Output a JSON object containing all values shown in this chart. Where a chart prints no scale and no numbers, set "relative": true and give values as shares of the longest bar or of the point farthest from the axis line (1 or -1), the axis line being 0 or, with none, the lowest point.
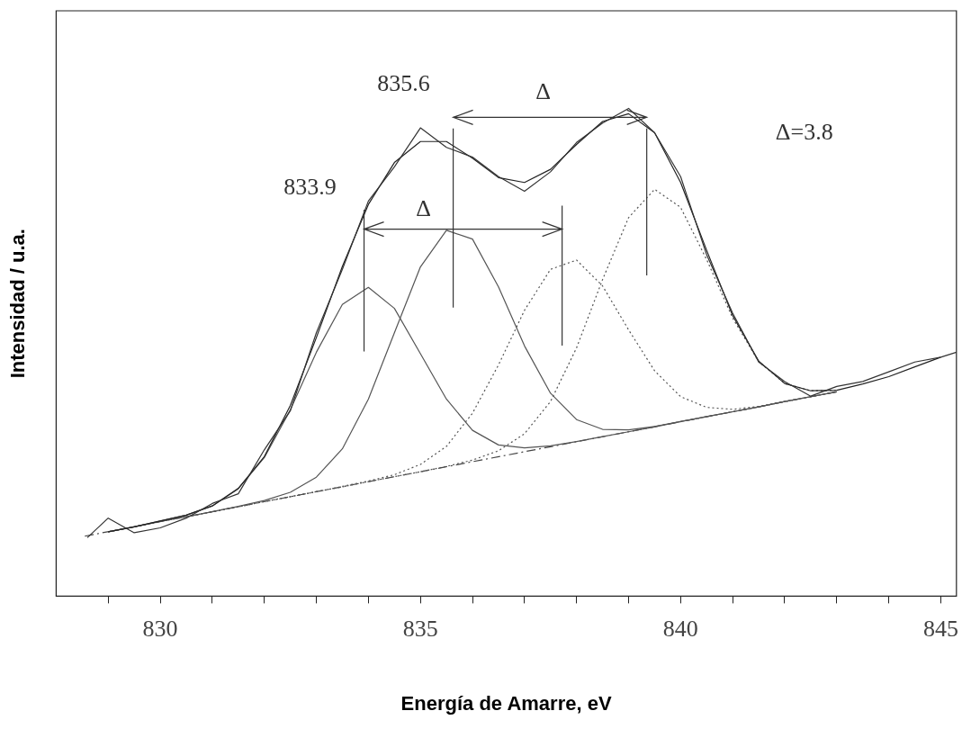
{
  "chart_data": {
    "type": "line",
    "relative": true,
    "xlabel": "Energía de Amarre, eV",
    "ylabel": "Intensidad / u.a.",
    "xlim": [
      828,
      845.3
    ],
    "xticks": [
      {
        "value": 829,
        "label": null
      },
      830,
      {
        "value": 831,
        "label": null
      },
      {
        "value": 832,
        "label": null
      },
      {
        "value": 833,
        "label": null
      },
      {
        "value": 834,
        "label": null
      },
      835,
      {
        "value": 836,
        "label": null
      },
      {
        "value": 837,
        "label": null
      },
      {
        "value": 838,
        "label": null
      },
      {
        "value": 839,
        "label": null
      },
      840,
      {
        "value": 841,
        "label": null
      },
      {
        "value": 842,
        "label": null
      },
      {
        "value": 843,
        "label": null
      },
      {
        "value": 844,
        "label": null
      },
      845
    ],
    "grid": false,
    "legend": false,
    "marker": "none",
    "series": [
      {
        "color": "#333333",
        "x": [
          828.6,
          829,
          829.5,
          830,
          830.5,
          831,
          831.5,
          832,
          832.5,
          833,
          833.5,
          834,
          834.5,
          835,
          835.5,
          836,
          836.5,
          837,
          837.5,
          838,
          838.5,
          839,
          839.5,
          840,
          840.5,
          841,
          841.5,
          842,
          842.5,
          843,
          843.5,
          844,
          844.5,
          845,
          845.3
        ],
        "values": [
          0.12,
          0.16,
          0.13,
          0.14,
          0.16,
          0.19,
          0.21,
          0.3,
          0.38,
          0.54,
          0.67,
          0.81,
          0.88,
          0.96,
          0.92,
          0.9,
          0.86,
          0.83,
          0.87,
          0.93,
          0.97,
          1.0,
          0.95,
          0.86,
          0.7,
          0.58,
          0.48,
          0.44,
          0.41,
          0.43,
          0.44,
          0.46,
          0.48,
          0.49,
          0.5
        ]
      },
      {
        "color": "#222222",
        "x": [
          829,
          829.5,
          830,
          830.5,
          831,
          831.5,
          832,
          832.5,
          833,
          833.5,
          834,
          834.5,
          835,
          835.5,
          836,
          836.5,
          837,
          837.5,
          838,
          838.5,
          839,
          839.5,
          840,
          840.5,
          841,
          841.5,
          842,
          842.5,
          843,
          843.5,
          844,
          844.5,
          845
        ],
        "values": [
          0.132,
          0.142,
          0.154,
          0.166,
          0.185,
          0.221,
          0.286,
          0.391,
          0.53,
          0.676,
          0.803,
          0.889,
          0.932,
          0.932,
          0.898,
          0.858,
          0.848,
          0.875,
          0.926,
          0.973,
          0.989,
          0.95,
          0.848,
          0.709,
          0.575,
          0.482,
          0.436,
          0.421,
          0.422,
          0.435,
          0.45,
          0.47,
          0.49
        ]
      },
      {
        "color": "#555555",
        "x": [
          829,
          829.5,
          830,
          830.5,
          831,
          831.5,
          832,
          832.5,
          833,
          833.5,
          834,
          834.5,
          835,
          835.5,
          836,
          836.5,
          837,
          837.5,
          838,
          838.5,
          839,
          839.5,
          840,
          840.5,
          841,
          841.5,
          842,
          842.5,
          843
        ],
        "values": [
          0.132,
          0.142,
          0.154,
          0.166,
          0.185,
          0.22,
          0.284,
          0.382,
          0.5,
          0.598,
          0.633,
          0.59,
          0.497,
          0.404,
          0.34,
          0.31,
          0.304,
          0.308,
          0.317,
          0.327,
          0.337,
          0.347,
          0.358,
          0.368,
          0.378,
          0.388,
          0.399,
          0.409,
          0.419
        ]
      },
      {
        "color": "#555555",
        "x": [
          829,
          829.5,
          830,
          830.5,
          831,
          831.5,
          832,
          832.5,
          833,
          833.5,
          834,
          834.5,
          835,
          835.5,
          836,
          836.5,
          837,
          837.5,
          838,
          838.5,
          839,
          839.5,
          840,
          840.5,
          841,
          841.5,
          842,
          842.5,
          843
        ],
        "values": [
          0.132,
          0.142,
          0.153,
          0.163,
          0.173,
          0.184,
          0.196,
          0.213,
          0.244,
          0.302,
          0.404,
          0.54,
          0.675,
          0.75,
          0.732,
          0.634,
          0.513,
          0.416,
          0.362,
          0.342,
          0.341,
          0.348,
          0.358,
          0.368,
          0.378,
          0.388,
          0.399,
          0.409,
          0.419
        ]
      },
      {
        "color": "#555555",
        "line_style": "dotted",
        "x": [
          829,
          829.5,
          830,
          830.5,
          831,
          831.5,
          832,
          832.5,
          833,
          833.5,
          834,
          834.5,
          835,
          835.5,
          836,
          836.5,
          837,
          837.5,
          838,
          838.5,
          839,
          839.5,
          840,
          840.5,
          841,
          841.5,
          842,
          842.5,
          843
        ],
        "values": [
          0.132,
          0.142,
          0.153,
          0.163,
          0.173,
          0.183,
          0.194,
          0.204,
          0.214,
          0.225,
          0.236,
          0.249,
          0.27,
          0.307,
          0.375,
          0.474,
          0.586,
          0.67,
          0.689,
          0.636,
          0.546,
          0.462,
          0.409,
          0.387,
          0.383,
          0.389,
          0.399,
          0.409,
          0.419
        ]
      },
      {
        "color": "#555555",
        "line_style": "dotted",
        "x": [
          829,
          829.5,
          830,
          830.5,
          831,
          831.5,
          832,
          832.5,
          833,
          833.5,
          834,
          834.5,
          835,
          835.5,
          836,
          836.5,
          837,
          837.5,
          838,
          838.5,
          839,
          839.5,
          840,
          840.5,
          841,
          841.5,
          842,
          842.5,
          843
        ],
        "values": [
          0.132,
          0.142,
          0.153,
          0.163,
          0.173,
          0.183,
          0.194,
          0.204,
          0.214,
          0.224,
          0.235,
          0.245,
          0.255,
          0.266,
          0.279,
          0.298,
          0.333,
          0.399,
          0.509,
          0.649,
          0.776,
          0.834,
          0.797,
          0.69,
          0.57,
          0.481,
          0.436,
          0.421,
          0.422
        ]
      },
      {
        "color": "#444444",
        "line_style": "dashed",
        "x": [
          828.55,
          843
        ],
        "values": [
          0.123,
          0.419
        ]
      }
    ],
    "annotations": [
      "833.9",
      "835.6",
      "Δ",
      "Δ",
      "Δ=3.8"
    ]
  }
}
